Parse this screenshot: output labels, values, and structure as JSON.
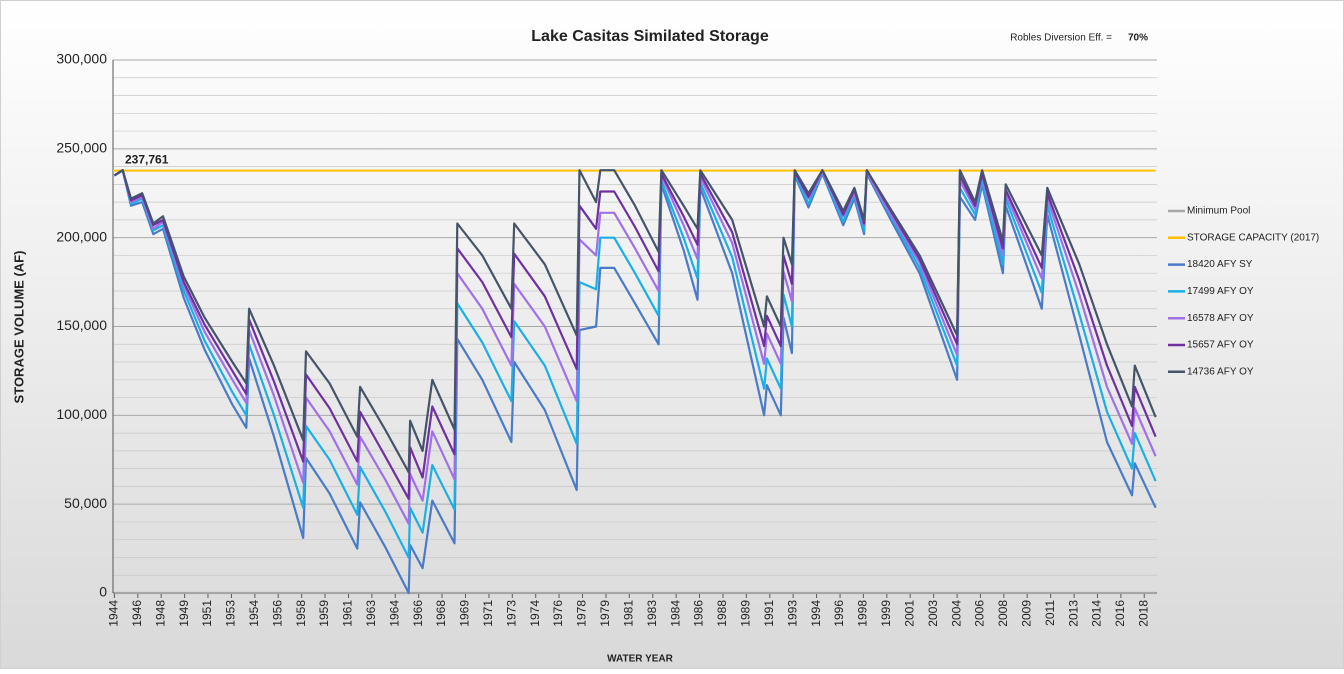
{
  "chart_data": {
    "type": "line",
    "title": "Lake Casitas Similated Storage",
    "note_label": "Robles Diversion Eff. =",
    "note_value": "70%",
    "y_label": "STORAGE  VOLUME (AF)",
    "x_label": "WATER YEAR",
    "xlim": [
      1943.9,
      2019.1
    ],
    "ylim": [
      0,
      300000
    ],
    "yticks": [
      0,
      {
        "value": 50000,
        "label": "50,000"
      },
      {
        "value": 100000,
        "label": "100,000"
      },
      {
        "value": 150000,
        "label": "150,000"
      },
      {
        "value": 200000,
        "label": "200,000"
      },
      {
        "value": 250000,
        "label": "250,000"
      },
      {
        "value": 300000,
        "label": "300,000"
      }
    ],
    "yminorticks": [
      10000,
      20000,
      30000,
      40000,
      60000,
      70000,
      80000,
      90000,
      110000,
      120000,
      130000,
      140000,
      160000,
      170000,
      180000,
      190000,
      210000,
      220000,
      230000,
      240000,
      260000,
      270000,
      280000,
      290000
    ],
    "xticks": [
      {
        "value": 1944.0,
        "label": "1944"
      },
      {
        "value": 1945.69,
        "label": "1946"
      },
      {
        "value": 1947.37,
        "label": "1948"
      },
      {
        "value": 1949.06,
        "label": "1949"
      },
      {
        "value": 1950.74,
        "label": "1951"
      },
      {
        "value": 1952.43,
        "label": "1953"
      },
      {
        "value": 1954.12,
        "label": "1954"
      },
      {
        "value": 1955.8,
        "label": "1956"
      },
      {
        "value": 1957.49,
        "label": "1958"
      },
      {
        "value": 1959.17,
        "label": "1959"
      },
      {
        "value": 1960.86,
        "label": "1961"
      },
      {
        "value": 1962.55,
        "label": "1963"
      },
      {
        "value": 1964.23,
        "label": "1964"
      },
      {
        "value": 1965.92,
        "label": "1966"
      },
      {
        "value": 1967.6,
        "label": "1968"
      },
      {
        "value": 1969.29,
        "label": "1969"
      },
      {
        "value": 1970.98,
        "label": "1971"
      },
      {
        "value": 1972.66,
        "label": "1973"
      },
      {
        "value": 1974.35,
        "label": "1974"
      },
      {
        "value": 1976.03,
        "label": "1976"
      },
      {
        "value": 1977.72,
        "label": "1978"
      },
      {
        "value": 1979.41,
        "label": "1979"
      },
      {
        "value": 1981.09,
        "label": "1981"
      },
      {
        "value": 1982.78,
        "label": "1983"
      },
      {
        "value": 1984.46,
        "label": "1984"
      },
      {
        "value": 1986.15,
        "label": "1986"
      },
      {
        "value": 1987.84,
        "label": "1988"
      },
      {
        "value": 1989.52,
        "label": "1989"
      },
      {
        "value": 1991.21,
        "label": "1991"
      },
      {
        "value": 1992.89,
        "label": "1993"
      },
      {
        "value": 1994.58,
        "label": "1994"
      },
      {
        "value": 1996.27,
        "label": "1996"
      },
      {
        "value": 1997.95,
        "label": "1998"
      },
      {
        "value": 1999.64,
        "label": "1999"
      },
      {
        "value": 2001.32,
        "label": "2001"
      },
      {
        "value": 2003.01,
        "label": "2003"
      },
      {
        "value": 2004.7,
        "label": "2004"
      },
      {
        "value": 2006.38,
        "label": "2006"
      },
      {
        "value": 2008.07,
        "label": "2008"
      },
      {
        "value": 2009.75,
        "label": "2009"
      },
      {
        "value": 2011.44,
        "label": "2011"
      },
      {
        "value": 2013.13,
        "label": "2013"
      },
      {
        "value": 2014.81,
        "label": "2014"
      },
      {
        "value": 2016.5,
        "label": "2016"
      },
      {
        "value": 2018.18,
        "label": "2018"
      }
    ],
    "grid": true,
    "legend": "right",
    "x": [
      1944.0,
      1944.6,
      1945.2,
      1946.0,
      1946.8,
      1947.5,
      1949.0,
      1950.5,
      1952.5,
      1953.5,
      1953.7,
      1955.5,
      1957.6,
      1957.8,
      1959.5,
      1961.5,
      1961.7,
      1963.5,
      1965.2,
      1965.3,
      1966.2,
      1966.9,
      1968.5,
      1968.7,
      1970.5,
      1972.6,
      1972.8,
      1975.0,
      1977.3,
      1977.5,
      1978.7,
      1979.0,
      1980.0,
      1981.5,
      1983.2,
      1983.4,
      1985.0,
      1986.0,
      1986.2,
      1988.5,
      1990.8,
      1991.0,
      1992.0,
      1992.2,
      1992.8,
      1993.0,
      1994.0,
      1995.0,
      1996.5,
      1997.3,
      1998.0,
      1998.2,
      2000.0,
      2002.0,
      2004.7,
      2004.9,
      2006.0,
      2006.5,
      2008.0,
      2008.2,
      2010.8,
      2011.2,
      2013.5,
      2015.5,
      2017.3,
      2017.5,
      2019.0
    ],
    "series": [
      {
        "name": "Minimum Pool",
        "color": "#a6a6a6",
        "x": [
          1944.0,
          2019.0
        ],
        "values": [
          0,
          0
        ]
      },
      {
        "name": "STORAGE CAPACITY (2017)",
        "color": "#ffc000",
        "x": [
          1943.9,
          2019.0
        ],
        "values": [
          237761,
          237761
        ],
        "annotation": "237,761"
      },
      {
        "name": "18420 AFY SY",
        "color": "#4a7bc8",
        "values": [
          235000,
          238000,
          218000,
          220000,
          202000,
          205000,
          166000,
          137000,
          106000,
          93000,
          132000,
          88000,
          31000,
          76000,
          56000,
          25000,
          51000,
          26000,
          0,
          27000,
          14000,
          52000,
          28000,
          143000,
          120000,
          85000,
          130000,
          103000,
          58000,
          148000,
          150000,
          183000,
          183000,
          163000,
          140000,
          230000,
          193000,
          165000,
          228000,
          180000,
          100000,
          117000,
          100000,
          155000,
          135000,
          235000,
          217000,
          236000,
          207000,
          222000,
          202000,
          236000,
          209000,
          180000,
          120000,
          223000,
          210000,
          230000,
          180000,
          218000,
          160000,
          213000,
          145000,
          85000,
          55000,
          73000,
          48000
        ]
      },
      {
        "name": "17499 AFY OY",
        "color": "#1ab0e6",
        "values": [
          235000,
          238000,
          219000,
          222000,
          204000,
          207000,
          170000,
          142000,
          113000,
          100000,
          140000,
          100000,
          48000,
          94000,
          75000,
          44000,
          71000,
          46000,
          20000,
          48000,
          34000,
          72000,
          47000,
          163000,
          141000,
          108000,
          153000,
          128000,
          84000,
          175000,
          171000,
          200000,
          200000,
          180000,
          156000,
          232000,
          200000,
          177000,
          231000,
          189000,
          115000,
          132000,
          115000,
          168000,
          150000,
          236000,
          219000,
          237000,
          209000,
          224000,
          204000,
          237000,
          211000,
          183000,
          128000,
          228000,
          213000,
          232000,
          185000,
          222000,
          169000,
          218000,
          157000,
          102000,
          70000,
          90000,
          63000
        ]
      },
      {
        "name": "16578 AFY OY",
        "color": "#a070e8",
        "values": [
          235000,
          238000,
          220000,
          223000,
          205000,
          209000,
          173000,
          147000,
          120000,
          107000,
          148000,
          111000,
          62000,
          110000,
          91000,
          61000,
          88000,
          64000,
          39000,
          67000,
          52000,
          91000,
          64000,
          180000,
          160000,
          128000,
          174000,
          150000,
          108000,
          199000,
          190000,
          214000,
          214000,
          194000,
          170000,
          235000,
          207000,
          188000,
          234000,
          197000,
          129000,
          146000,
          129000,
          181000,
          164000,
          237000,
          222000,
          237000,
          212000,
          225000,
          207000,
          237000,
          212000,
          186000,
          134000,
          232000,
          216000,
          235000,
          190000,
          225000,
          177000,
          222000,
          168000,
          116000,
          84000,
          104000,
          77000
        ]
      },
      {
        "name": "15657 AFY OY",
        "color": "#7030a0",
        "values": [
          235000,
          238000,
          221000,
          224000,
          207000,
          210000,
          175000,
          151000,
          125000,
          112000,
          154000,
          119000,
          74000,
          123000,
          104000,
          74000,
          102000,
          77000,
          53000,
          82000,
          65000,
          105000,
          78000,
          194000,
          175000,
          144000,
          191000,
          167000,
          126000,
          218000,
          205000,
          226000,
          226000,
          206000,
          181000,
          236000,
          212000,
          196000,
          236000,
          203000,
          139000,
          156000,
          139000,
          190000,
          174000,
          237000,
          223000,
          238000,
          213000,
          227000,
          208000,
          238000,
          214000,
          188000,
          140000,
          235000,
          218000,
          236000,
          194000,
          227000,
          183000,
          225000,
          176000,
          128000,
          94000,
          116000,
          88000
        ]
      },
      {
        "name": "14736 AFY OY",
        "color": "#44546a",
        "values": [
          235000,
          238000,
          222000,
          225000,
          208000,
          212000,
          178000,
          155000,
          130000,
          118000,
          160000,
          128000,
          86000,
          136000,
          118000,
          88000,
          116000,
          92000,
          68000,
          97000,
          80000,
          120000,
          92000,
          208000,
          190000,
          160000,
          208000,
          185000,
          145000,
          238000,
          220000,
          238000,
          238000,
          218000,
          192000,
          238000,
          218000,
          205000,
          238000,
          210000,
          150000,
          167000,
          150000,
          200000,
          185000,
          238000,
          225000,
          238000,
          215000,
          228000,
          210000,
          238000,
          215000,
          190000,
          145000,
          238000,
          220000,
          238000,
          198000,
          230000,
          190000,
          228000,
          185000,
          140000,
          105000,
          128000,
          99000
        ]
      }
    ]
  }
}
